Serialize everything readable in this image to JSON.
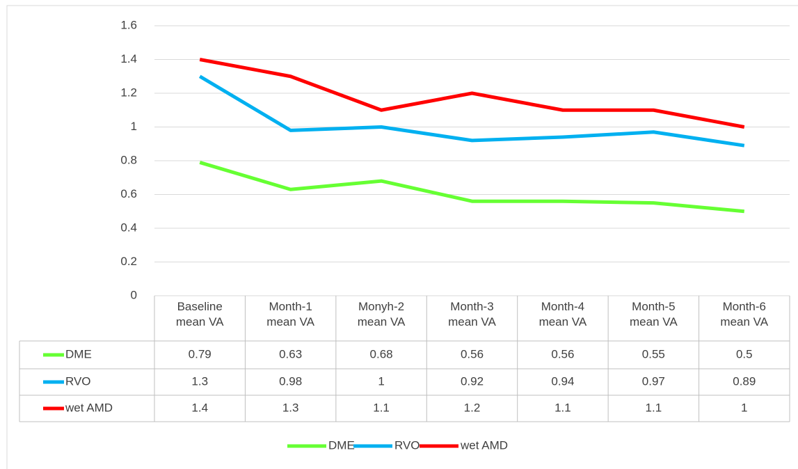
{
  "chart_data": {
    "type": "line",
    "categories": [
      "Baseline mean VA",
      "Month-1 mean VA",
      "Monyh-2 mean VA",
      "Month-3 mean VA",
      "Month-4 mean VA",
      "Month-5 mean VA",
      "Month-6 mean VA"
    ],
    "series": [
      {
        "name": "DME",
        "color": "#66ff33",
        "values": [
          0.79,
          0.63,
          0.68,
          0.56,
          0.56,
          0.55,
          0.5
        ]
      },
      {
        "name": "RVO",
        "color": "#00b0f0",
        "values": [
          1.3,
          0.98,
          1,
          0.92,
          0.94,
          0.97,
          0.89
        ]
      },
      {
        "name": "wet AMD",
        "color": "#ff0000",
        "values": [
          1.4,
          1.3,
          1.1,
          1.2,
          1.1,
          1.1,
          1
        ]
      }
    ],
    "ylim": [
      0,
      1.6
    ],
    "yticks": [
      0,
      0.2,
      0.4,
      0.6,
      0.8,
      1,
      1.2,
      1.4,
      1.6
    ],
    "grid": true,
    "legend": "bottom",
    "data_table": true
  }
}
